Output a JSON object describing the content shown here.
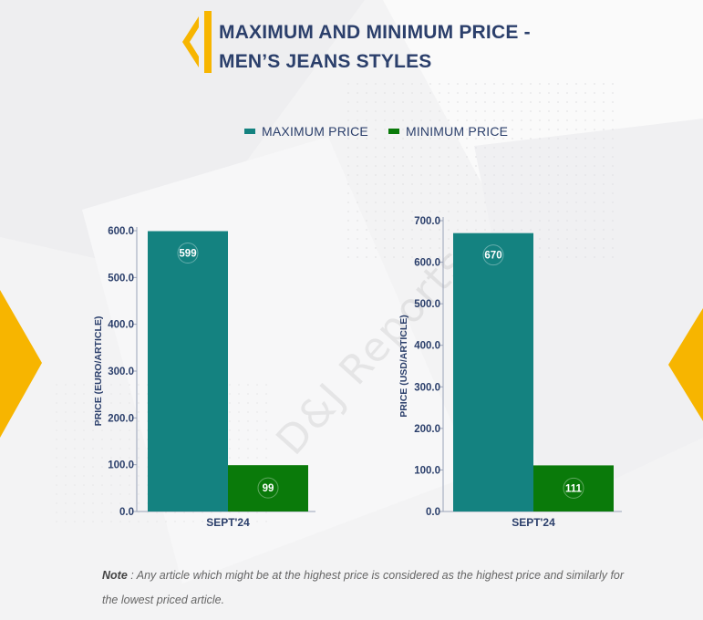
{
  "header": {
    "title_line1": "MAXIMUM AND MINIMUM PRICE -",
    "title_line2": "MEN’S JEANS STYLES"
  },
  "legend": [
    {
      "label": "MAXIMUM PRICE",
      "color": "#148280"
    },
    {
      "label": "MINIMUM PRICE",
      "color": "#0a7a0a"
    }
  ],
  "watermark": "D&J Reports",
  "note": {
    "prefix": "Note",
    "text": " : Any article which might be at the highest price is considered as the highest price and similarly for the lowest priced article."
  },
  "colors": {
    "accent": "#f7b500",
    "max": "#148280",
    "min": "#0a7a0a",
    "text": "#2b3f6b"
  },
  "chart_data": [
    {
      "type": "bar",
      "categories": [
        "SEPT'24"
      ],
      "series": [
        {
          "name": "MAXIMUM PRICE",
          "values": [
            599
          ]
        },
        {
          "name": "MINIMUM PRICE",
          "values": [
            99
          ]
        }
      ],
      "ylabel": "PRICE (EURO/ARTICLE)",
      "ylim": [
        0,
        600
      ],
      "yticks": [
        "0.0",
        "100.0",
        "200.0",
        "300.0",
        "400.0",
        "500.0",
        "600.0"
      ]
    },
    {
      "type": "bar",
      "categories": [
        "SEPT'24"
      ],
      "series": [
        {
          "name": "MAXIMUM PRICE",
          "values": [
            670
          ]
        },
        {
          "name": "MINIMUM PRICE",
          "values": [
            111
          ]
        }
      ],
      "ylabel": "PRICE (USD/ARTICLE)",
      "ylim": [
        0,
        700
      ],
      "yticks": [
        "0.0",
        "100.0",
        "200.0",
        "300.0",
        "400.0",
        "500.0",
        "600.0",
        "700.0"
      ]
    }
  ]
}
